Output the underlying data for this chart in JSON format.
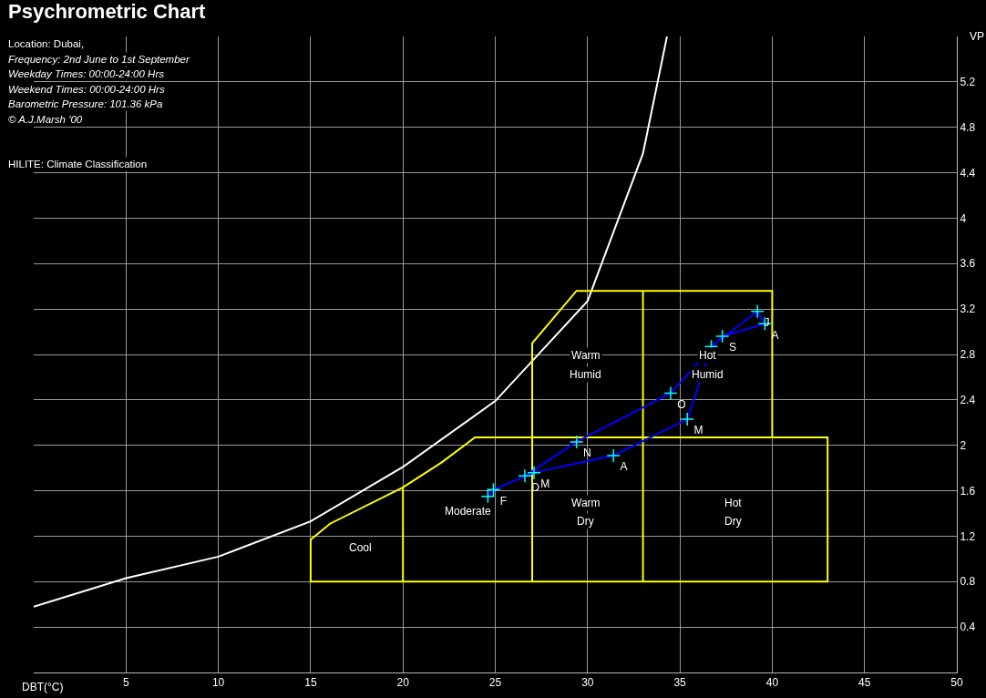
{
  "chart_data": {
    "type": "line",
    "title": "Psychrometric Chart",
    "subtitle": "Location: Dubai,",
    "xlabel": "DBT(°C)",
    "ylabel": "VP",
    "annotations": [
      "Frequency: 2nd June to 1st September",
      "Weekday Times: 00:00-24:00 Hrs",
      "Weekend Times: 00:00-24:00 Hrs",
      "Barometric Pressure: 101.36 kPa",
      "© A.J.Marsh '00",
      "HILITE: Climate Classification",
      "Cool",
      "Moderate",
      "Warm",
      "Dry",
      "Hot",
      "Dry",
      "Warm",
      "Humid",
      "Hot",
      "Humid"
    ],
    "xlim": [
      0,
      50
    ],
    "ylim": [
      0,
      5.6
    ],
    "xticks": [
      5,
      10,
      15,
      20,
      25,
      30,
      35,
      40,
      45,
      50
    ],
    "yticks": [
      0.4,
      0.8,
      1.2,
      1.6,
      2.0,
      2.4,
      2.8,
      3.2,
      3.6,
      4.0,
      4.4,
      4.8,
      5.2
    ],
    "grid": true,
    "series": [
      {
        "color": "#ffffff",
        "marker": "none",
        "x": [
          0,
          5,
          10,
          15,
          20,
          25,
          30,
          33,
          34.3
        ],
        "values": [
          0.58,
          0.83,
          1.02,
          1.33,
          1.81,
          2.39,
          3.27,
          4.57,
          5.6
        ]
      },
      {
        "color": "#ffff00",
        "marker": "none",
        "x": [
          20,
          16.05,
          15,
          15,
          33,
          33,
          29.4,
          27,
          27,
          20,
          20,
          22.1,
          23.9,
          43,
          43,
          33,
          33,
          40,
          40
        ],
        "values": [
          1.63,
          1.31,
          1.17,
          0.8,
          0.8,
          3.36,
          3.36,
          2.9,
          0.8,
          0.8,
          1.63,
          1.85,
          2.07,
          2.07,
          0.8,
          0.8,
          3.36,
          3.36,
          2.07
        ]
      },
      {
        "color": "#0000ff",
        "marker": "cross",
        "colors": [
          "#00ffff",
          "#00ffff",
          "#00ffff",
          "#00ffff",
          "#00ffff",
          "#00ffff",
          "#00ffff",
          "#00ffff",
          "#00ffff",
          "#00ffff",
          "#00ffff",
          "#00ffff"
        ],
        "x": [
          24.6,
          24.9,
          27.1,
          31.4,
          35.4,
          36.7,
          39.2,
          39.6,
          37.3,
          34.5,
          29.4,
          26.6
        ],
        "values": [
          1.55,
          1.61,
          1.76,
          1.91,
          2.23,
          2.87,
          3.18,
          3.07,
          2.96,
          2.46,
          2.03,
          1.73
        ],
        "value_labels": [
          null,
          "F",
          "M",
          "A",
          "M",
          null,
          "J",
          "A",
          "S",
          "O",
          "N",
          "D"
        ]
      }
    ]
  }
}
